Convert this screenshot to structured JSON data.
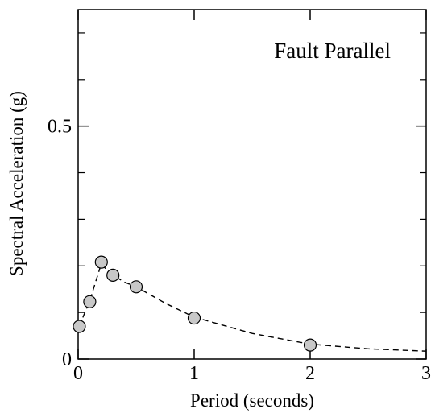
{
  "chart_data": {
    "type": "scatter",
    "title": "Fault Parallel",
    "xlabel": "Period (seconds)",
    "ylabel": "Spectral Acceleration (g)",
    "xlim": [
      0,
      3
    ],
    "ylim": [
      0,
      0.75
    ],
    "x_ticks": [
      0,
      1,
      2,
      3
    ],
    "x_tick_labels": [
      "0",
      "1",
      "2",
      "3"
    ],
    "y_ticks": [
      0,
      0.5
    ],
    "y_tick_labels": [
      "0",
      "0.5"
    ],
    "y_minor_ticks": [
      0.1,
      0.2,
      0.3,
      0.4,
      0.6,
      0.7
    ],
    "grid": false,
    "series": [
      {
        "kind": "points",
        "marker": "circle",
        "marker_color": "#c8c8c8",
        "x": [
          0.01,
          0.1,
          0.2,
          0.3,
          0.5,
          1.0,
          2.0
        ],
        "y": [
          0.07,
          0.123,
          0.208,
          0.18,
          0.155,
          0.088,
          0.03
        ]
      },
      {
        "kind": "fit-curve",
        "line_style": "dashed",
        "line_color": "#000000",
        "x": [
          0.01,
          0.05,
          0.1,
          0.15,
          0.2,
          0.25,
          0.3,
          0.4,
          0.5,
          0.75,
          1.0,
          1.5,
          2.0,
          2.5,
          3.0
        ],
        "y": [
          0.07,
          0.095,
          0.125,
          0.165,
          0.205,
          0.19,
          0.18,
          0.165,
          0.155,
          0.12,
          0.09,
          0.055,
          0.032,
          0.022,
          0.017
        ]
      }
    ]
  }
}
